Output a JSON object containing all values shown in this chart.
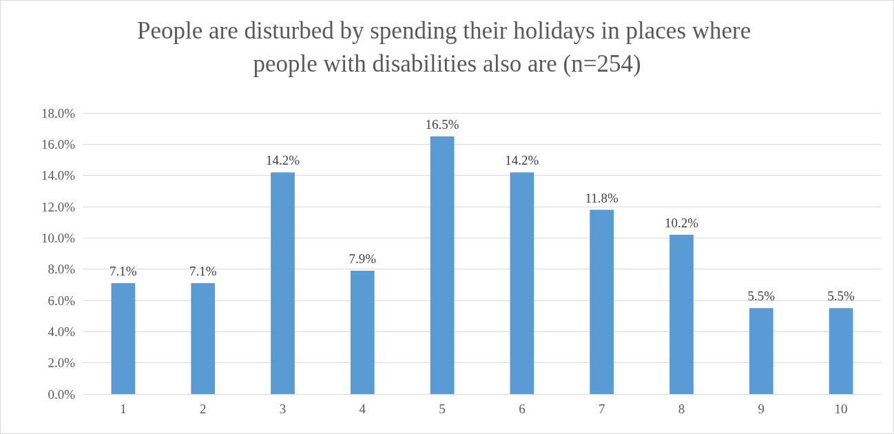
{
  "chart_data": {
    "type": "bar",
    "title": "People are disturbed by spending their holidays in places where people with disabilities also are (n=254)",
    "categories": [
      "1",
      "2",
      "3",
      "4",
      "5",
      "6",
      "7",
      "8",
      "9",
      "10"
    ],
    "values": [
      7.1,
      7.1,
      14.2,
      7.9,
      16.5,
      14.2,
      11.8,
      10.2,
      5.5,
      5.5
    ],
    "value_labels": [
      "7.1%",
      "7.1%",
      "14.2%",
      "7.9%",
      "16.5%",
      "14.2%",
      "11.8%",
      "10.2%",
      "5.5%",
      "5.5%"
    ],
    "color": "#5b9bd5",
    "ylim": [
      0,
      18
    ],
    "yticks": [
      {
        "value": 0,
        "label": "0.0%"
      },
      {
        "value": 2,
        "label": "2.0%"
      },
      {
        "value": 4,
        "label": "4.0%"
      },
      {
        "value": 6,
        "label": "6.0%"
      },
      {
        "value": 8,
        "label": "8.0%"
      },
      {
        "value": 10,
        "label": "10.0%"
      },
      {
        "value": 12,
        "label": "12.0%"
      },
      {
        "value": 14,
        "label": "14.0%"
      },
      {
        "value": 16,
        "label": "16.0%"
      },
      {
        "value": 18,
        "label": "18.0%"
      }
    ],
    "grid": "y"
  }
}
